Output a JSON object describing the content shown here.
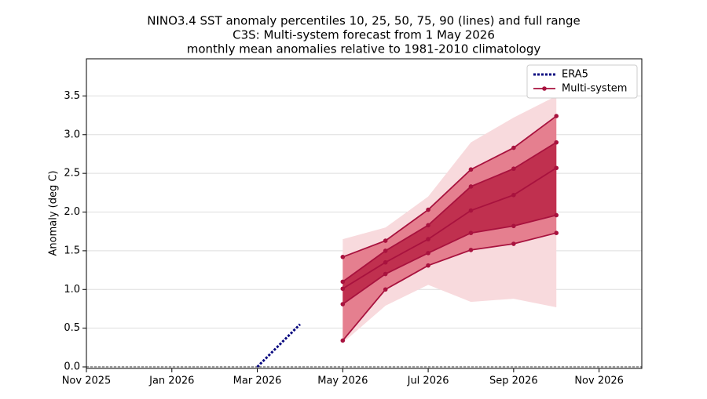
{
  "chart_data": {
    "type": "line",
    "title": [
      "NINO3.4 SST anomaly percentiles 10, 25, 50, 75, 90 (lines) and full range",
      "C3S: Multi-system forecast from 1 May 2026",
      "monthly mean anomalies relative to 1981-2010 climatology"
    ],
    "y_label": "Anomaly (deg C)",
    "xlim": [
      "2025-11",
      "2026-12"
    ],
    "xticks": [
      {
        "value": "2025-11",
        "label": "Nov 2025"
      },
      {
        "value": "2026-01",
        "label": "Jan 2026"
      },
      {
        "value": "2026-03",
        "label": "Mar 2026"
      },
      {
        "value": "2026-05",
        "label": "May 2026"
      },
      {
        "value": "2026-07",
        "label": "Jul 2026"
      },
      {
        "value": "2026-09",
        "label": "Sep 2026"
      },
      {
        "value": "2026-11",
        "label": "Nov 2026"
      }
    ],
    "ylim": [
      -0.02,
      3.98
    ],
    "yticks": [
      {
        "value": 0,
        "label": "0.0"
      },
      0.5,
      {
        "value": 1,
        "label": "1.0"
      },
      1.5,
      {
        "value": 2,
        "label": "2.0"
      },
      2.5,
      {
        "value": 3,
        "label": "3.0"
      },
      3.5
    ],
    "grid": true,
    "legend": "upper right",
    "era5": {
      "name": "ERA5",
      "color": "#0a0a80",
      "x": [
        "2026-03",
        "2026-04"
      ],
      "values": [
        0.0,
        0.55
      ]
    },
    "multi_system": {
      "name": "Multi-system",
      "color": "#a8123e",
      "inner_band_color": "#c0304f",
      "outer_band_color": "#e57f8f",
      "range_color": "#f8dadd",
      "x": [
        "2026-05",
        "2026-06",
        "2026-07",
        "2026-08",
        "2026-09",
        "2026-10"
      ],
      "p10": [
        0.34,
        1.0,
        1.31,
        1.51,
        1.59,
        1.73
      ],
      "p25": [
        0.81,
        1.2,
        1.47,
        1.73,
        1.82,
        1.96
      ],
      "p50": [
        1.01,
        1.35,
        1.65,
        2.02,
        2.22,
        2.57
      ],
      "p75": [
        1.1,
        1.5,
        1.83,
        2.33,
        2.56,
        2.9
      ],
      "p90": [
        1.42,
        1.63,
        2.03,
        2.55,
        2.83,
        3.24
      ],
      "min": [
        0.31,
        0.79,
        1.06,
        0.84,
        0.88,
        0.77
      ],
      "max": [
        1.65,
        1.8,
        2.2,
        2.9,
        3.22,
        3.5
      ]
    }
  }
}
